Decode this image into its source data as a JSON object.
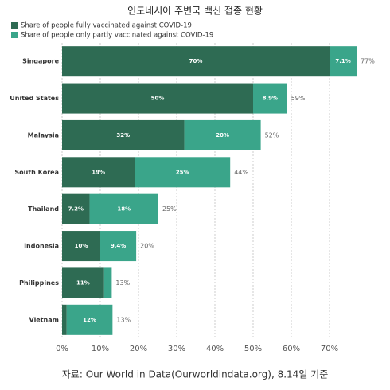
{
  "chart_data": {
    "type": "stacked-barh",
    "title": "인도네시아 주변국 백신 접종 현황",
    "source": "자료: Our World in Data(Ourworldindata.org), 8.14일 기준",
    "categories": [
      "Singapore",
      "United States",
      "Malaysia",
      "South Korea",
      "Thailand",
      "Indonesia",
      "Philippines",
      "Vietnam"
    ],
    "series": [
      {
        "name": "Share of people fully vaccinated against COVID-19",
        "color": "#2e6b53",
        "values": [
          70,
          50,
          32,
          19,
          7.2,
          10,
          11,
          1.2
        ],
        "value_labels": [
          "70%",
          "50%",
          "32%",
          "19%",
          "7.2%",
          "10%",
          "11%",
          null
        ]
      },
      {
        "name": "Share of people only partly vaccinated against COVID-19",
        "color": "#3aa58a",
        "values": [
          7.1,
          8.9,
          20,
          25,
          18,
          9.4,
          2,
          12
        ],
        "value_labels": [
          "7.1%",
          "8.9%",
          "20%",
          "25%",
          "18%",
          "9.4%",
          null,
          "12%"
        ]
      }
    ],
    "total_labels": [
      "77%",
      "59%",
      "52%",
      "44%",
      "25%",
      "20%",
      "13%",
      "13%"
    ],
    "xlim": [
      0,
      80
    ],
    "xticks": [
      {
        "value": 0,
        "label": "0%"
      },
      {
        "value": 10,
        "label": "10%"
      },
      {
        "value": 20,
        "label": "20%"
      },
      {
        "value": 30,
        "label": "30%"
      },
      {
        "value": 40,
        "label": "40%"
      },
      {
        "value": 50,
        "label": "50%"
      },
      {
        "value": 60,
        "label": "60%"
      },
      {
        "value": 70,
        "label": "70%"
      }
    ],
    "grid": true
  }
}
